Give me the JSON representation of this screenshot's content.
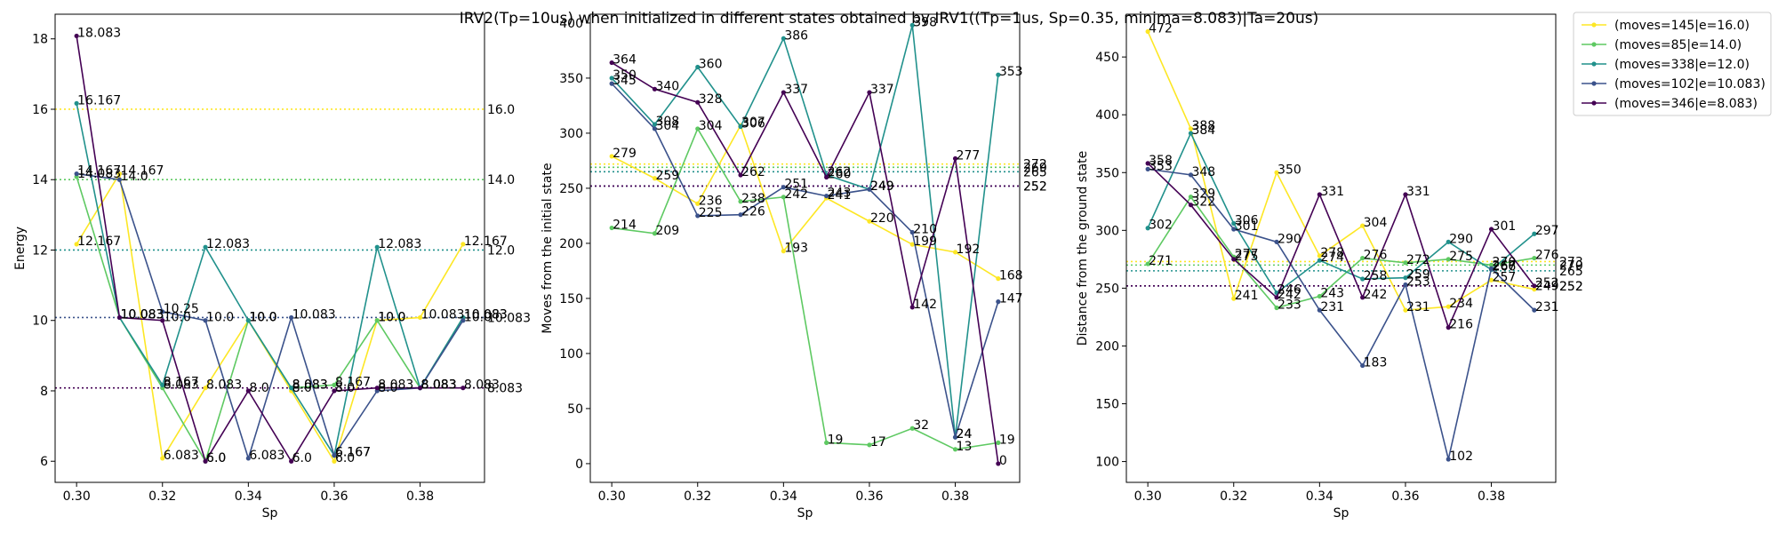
{
  "title": "IRV2(Tp=10us) when initialized in different states obtained by IRV1((Tp=1us, Sp=0.35, minima=8.083)|Ta=20us)",
  "colors": [
    "#fde725",
    "#5ec962",
    "#21918c",
    "#3b528b",
    "#440154"
  ],
  "legend": [
    "(moves=145|e=16.0)",
    "(moves=85|e=14.0)",
    "(moves=338|e=12.0)",
    "(moves=102|e=10.083)",
    "(moves=346|e=8.083)"
  ],
  "chart_data": [
    {
      "type": "line",
      "xlabel": "Sp",
      "ylabel": "Energy",
      "xlim": [
        0.295,
        0.395
      ],
      "ylim": [
        5.4,
        18.7
      ],
      "xticks": [
        0.3,
        0.32,
        0.34,
        0.36,
        0.38
      ],
      "xtick_labels": [
        "0.30",
        "0.32",
        "0.34",
        "0.36",
        "0.38"
      ],
      "yticks": [
        6,
        8,
        10,
        12,
        14,
        16,
        18
      ],
      "ytick_labels": [
        "6",
        "8",
        "10",
        "12",
        "14",
        "16",
        "18"
      ],
      "x": [
        0.3,
        0.31,
        0.32,
        0.33,
        0.34,
        0.35,
        0.36,
        0.37,
        0.38,
        0.39
      ],
      "reference_lines": [
        {
          "y": 16.0,
          "label": "16.0"
        },
        {
          "y": 14.0,
          "label": "14.0"
        },
        {
          "y": 12.0,
          "label": "12.0"
        },
        {
          "y": 10.083,
          "label": "10.083"
        },
        {
          "y": 8.083,
          "label": "8.083"
        }
      ],
      "series": [
        {
          "name": "(moves=145|e=16.0)",
          "values": [
            12.167,
            14.167,
            6.083,
            8.083,
            10.0,
            8.0,
            6.0,
            10.0,
            10.083,
            12.167
          ],
          "labels": [
            "12.167",
            "14.167",
            "6.083",
            "8.083",
            "10.0",
            "8.0",
            "6.0",
            "10.0",
            "10.083",
            "12.167"
          ]
        },
        {
          "name": "(moves=85|e=14.0)",
          "values": [
            14.083,
            10.083,
            8.083,
            6.0,
            10.0,
            8.083,
            8.167,
            10.0,
            8.083,
            10.083
          ],
          "labels": [
            "14.083",
            "10.083",
            "8.083",
            "6.0",
            "10.0",
            "8.083",
            "8.167",
            "10.0",
            "8.083",
            "10.083"
          ]
        },
        {
          "name": "(moves=338|e=12.0)",
          "values": [
            16.167,
            10.083,
            8.167,
            12.083,
            10.0,
            8.083,
            6.167,
            12.083,
            8.083,
            10.083
          ],
          "labels": [
            "16.167",
            "10.083",
            "8.167",
            "12.083",
            "10.0",
            "8.083",
            "6.167",
            "12.083",
            "8.083",
            "10.083"
          ]
        },
        {
          "name": "(moves=102|e=10.083)",
          "values": [
            14.167,
            14.0,
            10.25,
            10.0,
            6.083,
            10.083,
            6.167,
            8.0,
            8.083,
            10.0
          ],
          "labels": [
            "14.167",
            "14.0",
            "10.25",
            "10.0",
            "6.083",
            "10.083",
            "6.167",
            "8.0",
            "8.083",
            "10.0"
          ]
        },
        {
          "name": "(moves=346|e=8.083)",
          "values": [
            18.083,
            10.083,
            10.0,
            6.0,
            8.0,
            6.0,
            8.0,
            8.083,
            8.083,
            8.083
          ],
          "labels": [
            "18.083",
            "10.083",
            "10.0",
            "6.0",
            "8.0",
            "6.0",
            "8.0",
            "8.083",
            "8.083",
            "8.083"
          ]
        }
      ]
    },
    {
      "type": "line",
      "xlabel": "Sp",
      "ylabel": "Moves from the initial state",
      "xlim": [
        0.295,
        0.395
      ],
      "ylim": [
        -17,
        408
      ],
      "xticks": [
        0.3,
        0.32,
        0.34,
        0.36,
        0.38
      ],
      "xtick_labels": [
        "0.30",
        "0.32",
        "0.34",
        "0.36",
        "0.38"
      ],
      "yticks": [
        0,
        50,
        100,
        150,
        200,
        250,
        300,
        350,
        400
      ],
      "ytick_labels": [
        "0",
        "50",
        "100",
        "150",
        "200",
        "250",
        "300",
        "350",
        "400"
      ],
      "x": [
        0.3,
        0.31,
        0.32,
        0.33,
        0.34,
        0.35,
        0.36,
        0.37,
        0.38,
        0.39
      ],
      "reference_lines": [
        {
          "y": 272,
          "label": "272"
        },
        {
          "y": 269,
          "label": "269"
        },
        {
          "y": 265,
          "label": "265"
        },
        {
          "y": 252,
          "label": "252"
        },
        {
          "y": 252,
          "label": "252"
        }
      ],
      "series": [
        {
          "name": "(moves=145|e=16.0)",
          "values": [
            279,
            259,
            236,
            307,
            193,
            241,
            220,
            199,
            192,
            168
          ],
          "labels": [
            "279",
            "259",
            "236",
            "307",
            "193",
            "241",
            "220",
            "199",
            "192",
            "168"
          ]
        },
        {
          "name": "(moves=85|e=14.0)",
          "values": [
            214,
            209,
            304,
            238,
            242,
            19,
            17,
            32,
            13,
            19
          ],
          "labels": [
            "214",
            "209",
            "304",
            "238",
            "242",
            "19",
            "17",
            "32",
            "13",
            "19"
          ]
        },
        {
          "name": "(moves=338|e=12.0)",
          "values": [
            350,
            308,
            360,
            306,
            386,
            262,
            249,
            398,
            24,
            353
          ],
          "labels": [
            "350",
            "308",
            "360",
            "306",
            "386",
            "262",
            "249",
            "398",
            "24",
            "353"
          ]
        },
        {
          "name": "(moves=102|e=10.083)",
          "values": [
            345,
            304,
            225,
            226,
            251,
            243,
            249,
            210,
            24,
            147
          ],
          "labels": [
            "345",
            "304",
            "225",
            "226",
            "251",
            "243",
            "249",
            "210",
            "24",
            "147"
          ]
        },
        {
          "name": "(moves=346|e=8.083)",
          "values": [
            364,
            340,
            328,
            262,
            337,
            260,
            337,
            142,
            277,
            0
          ],
          "labels": [
            "364",
            "340",
            "328",
            "262",
            "337",
            "260",
            "337",
            "142",
            "277",
            "0"
          ]
        }
      ]
    },
    {
      "type": "line",
      "xlabel": "Sp",
      "ylabel": "Distance from the ground state",
      "xlim": [
        0.295,
        0.395
      ],
      "ylim": [
        82,
        487
      ],
      "xticks": [
        0.3,
        0.32,
        0.34,
        0.36,
        0.38
      ],
      "xtick_labels": [
        "0.30",
        "0.32",
        "0.34",
        "0.36",
        "0.38"
      ],
      "yticks": [
        100,
        150,
        200,
        250,
        300,
        350,
        400,
        450
      ],
      "ytick_labels": [
        "100",
        "150",
        "200",
        "250",
        "300",
        "350",
        "400",
        "450"
      ],
      "x": [
        0.3,
        0.31,
        0.32,
        0.33,
        0.34,
        0.35,
        0.36,
        0.37,
        0.38,
        0.39
      ],
      "reference_lines": [
        {
          "y": 273,
          "label": "273"
        },
        {
          "y": 270,
          "label": "270"
        },
        {
          "y": 265,
          "label": "265"
        },
        {
          "y": 252,
          "label": "252"
        },
        {
          "y": 252,
          "label": "252"
        }
      ],
      "series": [
        {
          "name": "(moves=145|e=16.0)",
          "values": [
            472,
            388,
            241,
            350,
            278,
            304,
            231,
            234,
            257,
            249
          ],
          "labels": [
            "472",
            "388",
            "241",
            "350",
            "278",
            "304",
            "231",
            "234",
            "257",
            "249"
          ]
        },
        {
          "name": "(moves=85|e=14.0)",
          "values": [
            271,
            329,
            277,
            233,
            243,
            276,
            272,
            275,
            270,
            276
          ],
          "labels": [
            "271",
            "329",
            "277",
            "233",
            "243",
            "276",
            "272",
            "275",
            "270",
            "276"
          ]
        },
        {
          "name": "(moves=338|e=12.0)",
          "values": [
            302,
            384,
            306,
            246,
            274,
            258,
            259,
            290,
            266,
            297
          ],
          "labels": [
            "302",
            "384",
            "306",
            "246",
            "274",
            "258",
            "259",
            "290",
            "266",
            "297"
          ]
        },
        {
          "name": "(moves=102|e=10.083)",
          "values": [
            353,
            348,
            301,
            290,
            231,
            183,
            253,
            102,
            267,
            231
          ],
          "labels": [
            "353",
            "348",
            "301",
            "290",
            "231",
            "183",
            "253",
            "102",
            "267",
            "231"
          ]
        },
        {
          "name": "(moves=346|e=8.083)",
          "values": [
            358,
            322,
            275,
            242,
            331,
            242,
            331,
            216,
            301,
            252
          ],
          "labels": [
            "358",
            "322",
            "275",
            "242",
            "331",
            "242",
            "331",
            "216",
            "301",
            "252"
          ]
        }
      ]
    }
  ]
}
